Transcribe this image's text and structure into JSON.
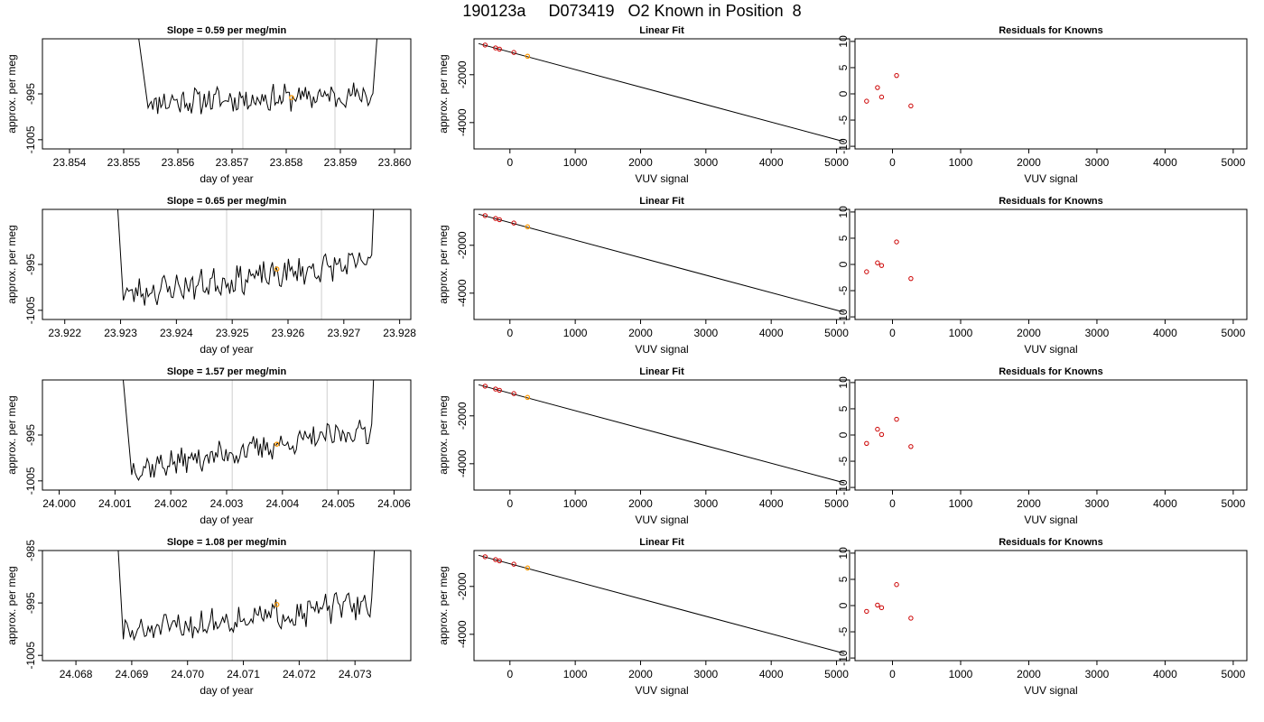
{
  "figure_title": "190123a     D073419   O2 Known in Position  8",
  "chart_data": [
    {
      "type": "line",
      "panel": "trace",
      "title": "Slope =  0.59  per meg/min",
      "xlabel": "day of year",
      "ylabel": "approx. per meg",
      "xlim": [
        23.8535,
        23.8603
      ],
      "ylim": [
        -1007,
        -983
      ],
      "xticks": [
        23.854,
        23.855,
        23.856,
        23.857,
        23.858,
        23.859,
        23.86
      ],
      "xtick_labels": [
        "23.854",
        "23.855",
        "23.856",
        "23.857",
        "23.858",
        "23.859",
        "23.860"
      ],
      "yticks": [
        -1005,
        -995
      ],
      "ytick_labels": [
        "-1005",
        "-995"
      ],
      "vlines": [
        23.8572,
        23.8589
      ],
      "trace": {
        "start": 23.85545,
        "end": 23.8596,
        "edge_x": [
          23.85505,
          23.8598
        ],
        "level_start": -996.8,
        "level_end": -995.2,
        "noise": 2.4,
        "seed": 11
      },
      "marker": {
        "x": 23.8581,
        "y": -995.8
      }
    },
    {
      "type": "line",
      "panel": "fit",
      "title": "Linear Fit",
      "xlabel": "VUV signal",
      "ylabel": "approx. per meg",
      "xlim": [
        -550,
        5200
      ],
      "ylim": [
        -5100,
        -500
      ],
      "xticks": [
        0,
        1000,
        2000,
        3000,
        4000,
        5000
      ],
      "xtick_labels": [
        "0",
        "1000",
        "2000",
        "3000",
        "4000",
        "5000"
      ],
      "yticks": [
        -4000,
        -2000
      ],
      "ytick_labels": [
        "-4000",
        "-2000"
      ],
      "line": {
        "x": [
          -480,
          5120
        ],
        "y": [
          -700,
          -4800
        ]
      },
      "points": {
        "x": [
          -380,
          -220,
          -160,
          60
        ],
        "y": [
          -760,
          -880,
          -930,
          -1070
        ]
      },
      "marker": {
        "x": 270,
        "y": -1230
      }
    },
    {
      "type": "scatter",
      "panel": "resid",
      "title": "Residuals for Knowns",
      "xlabel": "VUV signal",
      "ylabel": "",
      "xlim": [
        -550,
        5200
      ],
      "ylim": [
        -10.5,
        10.5
      ],
      "xticks": [
        0,
        1000,
        2000,
        3000,
        4000,
        5000
      ],
      "xtick_labels": [
        "0",
        "1000",
        "2000",
        "3000",
        "4000",
        "5000"
      ],
      "yticks": [
        -10,
        -5,
        0,
        5,
        10
      ],
      "ytick_labels": [
        "-10",
        "-5",
        "0",
        "5",
        "10"
      ],
      "points": {
        "x": [
          -380,
          -220,
          -160,
          60,
          270
        ],
        "y": [
          -1.4,
          1.2,
          -0.6,
          3.5,
          -2.3
        ]
      }
    },
    {
      "type": "line",
      "panel": "trace",
      "title": "Slope =  0.65  per meg/min",
      "xlabel": "day of year",
      "ylabel": "approx. per meg",
      "xlim": [
        23.9216,
        23.9282
      ],
      "ylim": [
        -1007,
        -983
      ],
      "xticks": [
        23.922,
        23.923,
        23.924,
        23.925,
        23.926,
        23.927,
        23.928
      ],
      "xtick_labels": [
        "23.922",
        "23.923",
        "23.924",
        "23.925",
        "23.926",
        "23.927",
        "23.928"
      ],
      "yticks": [
        -1005,
        -995
      ],
      "ytick_labels": [
        "-1005",
        "-995"
      ],
      "vlines": [
        23.9249,
        23.9266
      ],
      "trace": {
        "start": 23.92305,
        "end": 23.9275,
        "edge_x": [
          23.92285,
          23.9276
        ],
        "level_start": -1001.5,
        "level_end": -994.5,
        "noise": 2.6,
        "seed": 23
      },
      "marker": {
        "x": 23.9258,
        "y": -996.0
      }
    },
    {
      "type": "line",
      "panel": "fit",
      "title": "Linear Fit",
      "xlabel": "VUV signal",
      "ylabel": "approx. per meg",
      "xlim": [
        -550,
        5200
      ],
      "ylim": [
        -5100,
        -500
      ],
      "xticks": [
        0,
        1000,
        2000,
        3000,
        4000,
        5000
      ],
      "xtick_labels": [
        "0",
        "1000",
        "2000",
        "3000",
        "4000",
        "5000"
      ],
      "yticks": [
        -4000,
        -2000
      ],
      "ytick_labels": [
        "-4000",
        "-2000"
      ],
      "line": {
        "x": [
          -480,
          5120
        ],
        "y": [
          -700,
          -4800
        ]
      },
      "points": {
        "x": [
          -380,
          -220,
          -160,
          60
        ],
        "y": [
          -760,
          -880,
          -930,
          -1070
        ]
      },
      "marker": {
        "x": 270,
        "y": -1230
      }
    },
    {
      "type": "scatter",
      "panel": "resid",
      "title": "Residuals for Knowns",
      "xlabel": "VUV signal",
      "ylabel": "",
      "xlim": [
        -550,
        5200
      ],
      "ylim": [
        -10.5,
        10.5
      ],
      "xticks": [
        0,
        1000,
        2000,
        3000,
        4000,
        5000
      ],
      "xtick_labels": [
        "0",
        "1000",
        "2000",
        "3000",
        "4000",
        "5000"
      ],
      "yticks": [
        -10,
        -5,
        0,
        5,
        10
      ],
      "ytick_labels": [
        "-10",
        "-5",
        "0",
        "5",
        "10"
      ],
      "points": {
        "x": [
          -380,
          -220,
          -160,
          60,
          270
        ],
        "y": [
          -1.4,
          0.3,
          -0.2,
          4.3,
          -2.7
        ]
      }
    },
    {
      "type": "line",
      "panel": "trace",
      "title": "Slope =  1.57  per meg/min",
      "xlabel": "day of year",
      "ylabel": "approx. per meg",
      "xlim": [
        23.9997,
        24.0063
      ],
      "ylim": [
        -1007,
        -983
      ],
      "xticks": [
        24.0,
        24.001,
        24.002,
        24.003,
        24.004,
        24.005,
        24.006
      ],
      "xtick_labels": [
        "24.000",
        "24.001",
        "24.002",
        "24.003",
        "24.004",
        "24.005",
        "24.006"
      ],
      "yticks": [
        -1005,
        -995
      ],
      "ytick_labels": [
        "-1005",
        "-995"
      ],
      "vlines": [
        24.0031,
        24.0048
      ],
      "trace": {
        "start": 24.0013,
        "end": 24.0056,
        "edge_x": [
          24.001,
          24.0057
        ],
        "level_start": -1002.5,
        "level_end": -993.8,
        "noise": 2.4,
        "seed": 37
      },
      "marker": {
        "x": 24.0039,
        "y": -997.0
      }
    },
    {
      "type": "line",
      "panel": "fit",
      "title": "Linear Fit",
      "xlabel": "VUV signal",
      "ylabel": "approx. per meg",
      "xlim": [
        -550,
        5200
      ],
      "ylim": [
        -5100,
        -500
      ],
      "xticks": [
        0,
        1000,
        2000,
        3000,
        4000,
        5000
      ],
      "xtick_labels": [
        "0",
        "1000",
        "2000",
        "3000",
        "4000",
        "5000"
      ],
      "yticks": [
        -4000,
        -2000
      ],
      "ytick_labels": [
        "-4000",
        "-2000"
      ],
      "line": {
        "x": [
          -480,
          5120
        ],
        "y": [
          -700,
          -4800
        ]
      },
      "points": {
        "x": [
          -380,
          -220,
          -160,
          60
        ],
        "y": [
          -760,
          -880,
          -930,
          -1070
        ]
      },
      "marker": {
        "x": 270,
        "y": -1230
      }
    },
    {
      "type": "scatter",
      "panel": "resid",
      "title": "Residuals for Knowns",
      "xlabel": "VUV signal",
      "ylabel": "",
      "xlim": [
        -550,
        5200
      ],
      "ylim": [
        -10.5,
        10.5
      ],
      "xticks": [
        0,
        1000,
        2000,
        3000,
        4000,
        5000
      ],
      "xtick_labels": [
        "0",
        "1000",
        "2000",
        "3000",
        "4000",
        "5000"
      ],
      "yticks": [
        -10,
        -5,
        0,
        5,
        10
      ],
      "ytick_labels": [
        "-10",
        "-5",
        "0",
        "5",
        "10"
      ],
      "points": {
        "x": [
          -380,
          -220,
          -160,
          60,
          270
        ],
        "y": [
          -1.6,
          1.1,
          0.1,
          3.0,
          -2.2
        ]
      }
    },
    {
      "type": "line",
      "panel": "trace",
      "title": "Slope =  1.08  per meg/min",
      "xlabel": "day of year",
      "ylabel": "approx. per meg",
      "xlim": [
        24.0674,
        24.074
      ],
      "ylim": [
        -1006,
        -985
      ],
      "xticks": [
        24.068,
        24.069,
        24.07,
        24.071,
        24.072,
        24.073
      ],
      "xtick_labels": [
        "24.068",
        "24.069",
        "24.070",
        "24.071",
        "24.072",
        "24.073"
      ],
      "yticks": [
        -1005,
        -995,
        -985
      ],
      "ytick_labels": [
        "-1005",
        "-995",
        "-985"
      ],
      "vlines": [
        24.0708,
        24.0725
      ],
      "trace": {
        "start": 24.06885,
        "end": 24.0733,
        "edge_x": [
          24.06865,
          24.07345
        ],
        "level_start": -1000.8,
        "level_end": -995.0,
        "noise": 2.3,
        "seed": 51
      },
      "marker": {
        "x": 24.0716,
        "y": -995.3
      }
    },
    {
      "type": "line",
      "panel": "fit",
      "title": "Linear Fit",
      "xlabel": "VUV signal",
      "ylabel": "approx. per meg",
      "xlim": [
        -550,
        5200
      ],
      "ylim": [
        -5100,
        -500
      ],
      "xticks": [
        0,
        1000,
        2000,
        3000,
        4000,
        5000
      ],
      "xtick_labels": [
        "0",
        "1000",
        "2000",
        "3000",
        "4000",
        "5000"
      ],
      "yticks": [
        -4000,
        -2000
      ],
      "ytick_labels": [
        "-4000",
        "-2000"
      ],
      "line": {
        "x": [
          -480,
          5120
        ],
        "y": [
          -700,
          -4800
        ]
      },
      "points": {
        "x": [
          -380,
          -220,
          -160,
          60
        ],
        "y": [
          -760,
          -880,
          -930,
          -1070
        ]
      },
      "marker": {
        "x": 270,
        "y": -1230
      }
    },
    {
      "type": "scatter",
      "panel": "resid",
      "title": "Residuals for Knowns",
      "xlabel": "VUV signal",
      "ylabel": "",
      "xlim": [
        -550,
        5200
      ],
      "ylim": [
        -10.5,
        10.5
      ],
      "xticks": [
        0,
        1000,
        2000,
        3000,
        4000,
        5000
      ],
      "xtick_labels": [
        "0",
        "1000",
        "2000",
        "3000",
        "4000",
        "5000"
      ],
      "yticks": [
        -10,
        -5,
        0,
        5,
        10
      ],
      "ytick_labels": [
        "-10",
        "-5",
        "0",
        "5",
        "10"
      ],
      "points": {
        "x": [
          -380,
          -220,
          -160,
          60,
          270
        ],
        "y": [
          -1.1,
          0.1,
          -0.4,
          4.0,
          -2.4
        ]
      }
    }
  ]
}
